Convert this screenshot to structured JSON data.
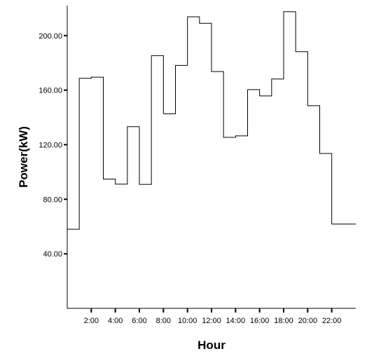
{
  "chart_data": {
    "type": "line",
    "style": "step",
    "title": "",
    "xlabel": "Hour",
    "ylabel": "Power(kW)",
    "x_tick_labels": [
      "2:00",
      "4:00",
      "6:00",
      "8:00",
      "10:00",
      "12:00",
      "14:00",
      "16:00",
      "18:00",
      "20:00",
      "22:00"
    ],
    "y_tick_labels": [
      "40.00",
      "80.00",
      "120.00",
      "160.00",
      "200.00"
    ],
    "y_ticks": [
      40,
      80,
      120,
      160,
      200
    ],
    "xlim": [
      0,
      24
    ],
    "ylim": [
      0,
      222
    ],
    "grid": false,
    "series": [
      {
        "hours": [
          0,
          1,
          2,
          3,
          4,
          5,
          6,
          7,
          8,
          9,
          10,
          11,
          12,
          13,
          14,
          15,
          16,
          17,
          18,
          19,
          20,
          21,
          22,
          23
        ],
        "values": [
          58.0,
          168.7,
          169.5,
          94.8,
          91.1,
          133.2,
          90.9,
          185.3,
          142.7,
          178.1,
          213.8,
          209.0,
          173.6,
          125.4,
          126.5,
          160.4,
          155.8,
          168.2,
          217.5,
          188.2,
          148.6,
          113.6,
          61.8,
          61.8
        ]
      }
    ]
  }
}
